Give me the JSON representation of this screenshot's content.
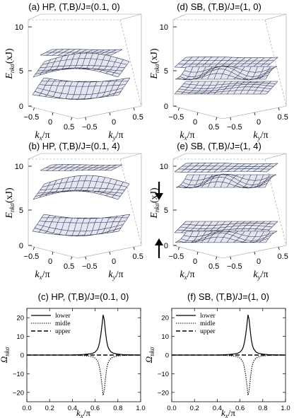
{
  "chart_data": [
    {
      "id": "a",
      "type": "surface3d",
      "title": "(a)  HP, (T,B)/J=(0.1, 0)",
      "zlabel": "E",
      "zlabel_sub": "nkσ",
      "zlabel_unit": "(xJ)",
      "xlabel": "k",
      "xlabel_sub": "x",
      "xlabel_unit": "/π",
      "ylabel": "k",
      "ylabel_sub": "y",
      "ylabel_unit": "/π",
      "zticks": [
        "0",
        "5",
        "10"
      ],
      "xticks": [
        "−0.5",
        "0",
        "0.5"
      ],
      "yticks": [
        "−0.5",
        "0",
        "0.5"
      ],
      "zlim": [
        0,
        11
      ],
      "bands": [
        "lower",
        "middle",
        "upper"
      ],
      "arrows": []
    },
    {
      "id": "d",
      "type": "surface3d",
      "title": "(d)  SB, (T,B)/J=(1, 0)",
      "zlabel": "E",
      "zlabel_sub": "nkσ",
      "zlabel_unit": "(xJ)",
      "xlabel": "k",
      "xlabel_sub": "x",
      "xlabel_unit": "/π",
      "ylabel": "k",
      "ylabel_sub": "y",
      "ylabel_unit": "/π",
      "zticks": [
        "0",
        "5",
        "10"
      ],
      "xticks": [
        "−0.5",
        "0",
        "0.5"
      ],
      "yticks": [
        "−0.5",
        "0",
        "0.5"
      ],
      "zlim": [
        0,
        11
      ],
      "bands": [
        "lower",
        "middle",
        "upper"
      ],
      "arrows": []
    },
    {
      "id": "b",
      "type": "surface3d",
      "title": "(b)  HP, (T,B)/J=(0.1, 4)",
      "zlabel": "E",
      "zlabel_sub": "nkσ",
      "zlabel_unit": "(xJ)",
      "xlabel": "k",
      "xlabel_sub": "x",
      "xlabel_unit": "/π",
      "ylabel": "k",
      "ylabel_sub": "y",
      "ylabel_unit": "/π",
      "zticks": [
        "0",
        "5",
        "10"
      ],
      "xticks": [
        "−0.5",
        "0",
        "0.5"
      ],
      "yticks": [
        "−0.5",
        "0",
        "0.5"
      ],
      "zlim": [
        0,
        11
      ],
      "bands": [
        "lower",
        "middle",
        "upper"
      ],
      "arrows": []
    },
    {
      "id": "e",
      "type": "surface3d",
      "title": "(e)  SB, (T,B)/J=(1, 4)",
      "zlabel": "E",
      "zlabel_sub": "nkσ",
      "zlabel_unit": "(xJ)",
      "xlabel": "k",
      "xlabel_sub": "x",
      "xlabel_unit": "/π",
      "ylabel": "k",
      "ylabel_sub": "y",
      "ylabel_unit": "/π",
      "zticks": [
        "0",
        "5",
        "10"
      ],
      "xticks": [
        "−0.5",
        "0",
        "0.5"
      ],
      "yticks": [
        "−0.5",
        "0",
        "0.5"
      ],
      "zlim": [
        0,
        11
      ],
      "bands": [
        "spin-down lower",
        "spin-down middle",
        "spin-down upper",
        "spin-up lower",
        "spin-up middle",
        "spin-up upper"
      ],
      "arrows": [
        "down",
        "up"
      ]
    },
    {
      "id": "c",
      "type": "line",
      "title": "(c)  HP, (T,B)/J=(0.1, 0)",
      "xlabel": "k",
      "xlabel_sub": "x",
      "xlabel_unit": "/π",
      "ylabel": "Ω",
      "ylabel_sub": "nkσ",
      "xlim": [
        0,
        1
      ],
      "ylim": [
        -25,
        25
      ],
      "xticks": [
        "0.0",
        "0.2",
        "0.4",
        "0.6",
        "0.8",
        "1.0"
      ],
      "xtick_values": [
        0,
        0.2,
        0.4,
        0.6,
        0.8,
        1.0
      ],
      "yticks": [
        "−20",
        "−10",
        "0",
        "10",
        "20"
      ],
      "ytick_values": [
        -20,
        -10,
        0,
        10,
        20
      ],
      "legend_position": "top-left",
      "x": [
        0.0,
        0.1,
        0.2,
        0.3,
        0.4,
        0.5,
        0.55,
        0.58,
        0.6,
        0.62,
        0.63,
        0.64,
        0.65,
        0.66,
        0.67,
        0.68,
        0.69,
        0.7,
        0.71,
        0.72,
        0.74,
        0.76,
        0.8,
        0.85,
        0.9,
        1.0
      ],
      "series": [
        {
          "name": "lower",
          "style": "solid",
          "values": [
            0,
            0,
            0,
            0,
            0,
            0.3,
            0.6,
            1.0,
            1.6,
            3.0,
            4.5,
            7.0,
            11.0,
            16.0,
            21.5,
            19.0,
            13.0,
            8.0,
            5.0,
            3.3,
            1.7,
            1.0,
            0.5,
            0.2,
            0.1,
            0
          ]
        },
        {
          "name": "midle",
          "style": "dotted",
          "values": [
            0,
            0,
            0,
            0,
            0,
            -0.3,
            -0.6,
            -1.0,
            -1.6,
            -3.0,
            -4.5,
            -7.0,
            -11.0,
            -16.0,
            -21.5,
            -19.0,
            -13.0,
            -8.0,
            -5.0,
            -3.3,
            -1.7,
            -1.0,
            -0.5,
            -0.2,
            -0.1,
            0
          ]
        },
        {
          "name": "upper",
          "style": "dashed",
          "values": [
            0,
            0,
            0,
            0,
            0,
            0,
            0,
            0,
            0,
            0,
            0,
            0,
            0,
            0,
            0,
            0,
            0,
            0,
            0,
            0,
            0,
            0,
            0,
            0,
            0,
            0
          ]
        }
      ]
    },
    {
      "id": "f",
      "type": "line",
      "title": "(f)  SB, (T,B)/J=(1, 0)",
      "xlabel": "k",
      "xlabel_sub": "x",
      "xlabel_unit": "/π",
      "ylabel": "Ω",
      "ylabel_sub": "nkσ",
      "xlim": [
        0,
        1
      ],
      "ylim": [
        -25,
        25
      ],
      "xticks": [
        "0.0",
        "0.2",
        "0.4",
        "0.6",
        "0.8",
        "1.0"
      ],
      "xtick_values": [
        0,
        0.2,
        0.4,
        0.6,
        0.8,
        1.0
      ],
      "yticks": [
        "−20",
        "−10",
        "0",
        "10",
        "20"
      ],
      "ytick_values": [
        -20,
        -10,
        0,
        10,
        20
      ],
      "legend_position": "top-left",
      "x": [
        0.0,
        0.1,
        0.2,
        0.3,
        0.4,
        0.5,
        0.55,
        0.58,
        0.6,
        0.62,
        0.63,
        0.64,
        0.65,
        0.66,
        0.67,
        0.68,
        0.69,
        0.7,
        0.71,
        0.72,
        0.74,
        0.76,
        0.8,
        0.85,
        0.9,
        1.0
      ],
      "series": [
        {
          "name": "lower",
          "style": "solid",
          "values": [
            0,
            0,
            0,
            0,
            0,
            0.3,
            0.6,
            1.0,
            1.6,
            3.0,
            4.5,
            7.0,
            11.0,
            16.0,
            21.5,
            19.0,
            13.0,
            8.0,
            5.0,
            3.3,
            1.7,
            1.0,
            0.5,
            0.2,
            0.1,
            0
          ]
        },
        {
          "name": "midle",
          "style": "dotted",
          "values": [
            0,
            0,
            0,
            0,
            0,
            -0.3,
            -0.6,
            -1.0,
            -1.6,
            -3.0,
            -4.5,
            -7.0,
            -11.0,
            -16.0,
            -21.5,
            -19.0,
            -13.0,
            -8.0,
            -5.0,
            -3.3,
            -1.7,
            -1.0,
            -0.5,
            -0.2,
            -0.1,
            0
          ]
        },
        {
          "name": "upper",
          "style": "dashed",
          "values": [
            0,
            0,
            0,
            0,
            0,
            0,
            0,
            0,
            0,
            0,
            0,
            0,
            0,
            0,
            0,
            0,
            0,
            0,
            0,
            0,
            0,
            0,
            0,
            0,
            0,
            0
          ]
        }
      ]
    }
  ],
  "colors": {
    "surface_fill": "#e3e6f2",
    "surface_mesh": "#2a2f45",
    "box": "#9a9a9a",
    "line": "#000000"
  }
}
